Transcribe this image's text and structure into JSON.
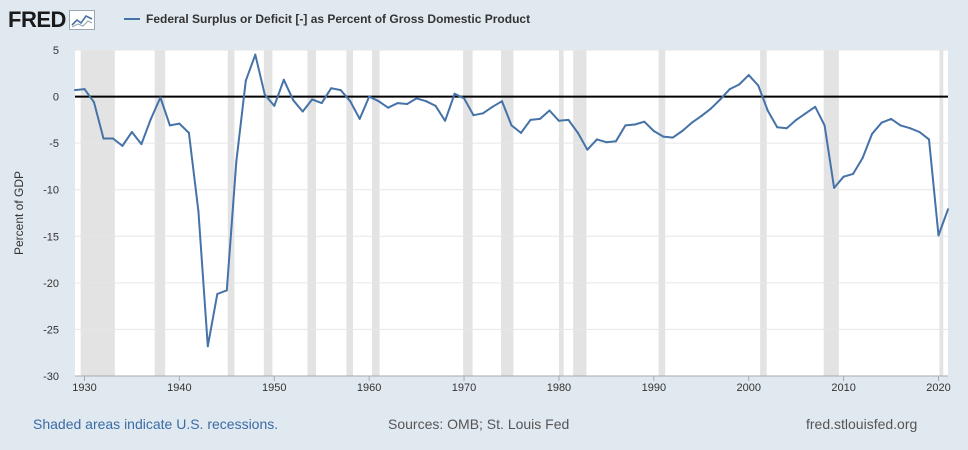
{
  "header": {
    "logo_text": "FRED",
    "legend_label": "Federal Surplus or Deficit [-] as Percent of Gross Domestic Product"
  },
  "footer": {
    "recession_note": "Shaded areas indicate U.S. recessions.",
    "sources": "Sources: OMB; St. Louis Fed",
    "site": "fred.stlouisfed.org"
  },
  "colors": {
    "series": "#4572a7",
    "background": "#e1e9f0",
    "recession": "#e3e3e3",
    "zero_line": "#000000"
  },
  "chart_data": {
    "type": "line",
    "title": "Federal Surplus or Deficit [-] as Percent of Gross Domestic Product",
    "ylabel": "Percent of GDP",
    "xlabel": "",
    "xlim": [
      1929,
      2021
    ],
    "ylim": [
      -30,
      5
    ],
    "yticks": [
      5,
      0,
      -5,
      -10,
      -15,
      -20,
      -25,
      -30
    ],
    "xticks": [
      1930,
      1940,
      1950,
      1960,
      1970,
      1980,
      1990,
      2000,
      2010,
      2020
    ],
    "grid": true,
    "legend": "top-left",
    "recessions": [
      [
        1929.6,
        1933.2
      ],
      [
        1937.4,
        1938.5
      ],
      [
        1945.1,
        1945.8
      ],
      [
        1948.9,
        1949.8
      ],
      [
        1953.5,
        1954.4
      ],
      [
        1957.6,
        1958.3
      ],
      [
        1960.3,
        1961.1
      ],
      [
        1969.9,
        1970.9
      ],
      [
        1973.9,
        1975.2
      ],
      [
        1980.0,
        1980.5
      ],
      [
        1981.5,
        1982.9
      ],
      [
        1990.5,
        1991.2
      ],
      [
        2001.2,
        2001.9
      ],
      [
        2007.9,
        2009.5
      ],
      [
        2020.1,
        2020.5
      ]
    ],
    "series": [
      {
        "x": [
          1929,
          1930,
          1931,
          1932,
          1933,
          1934,
          1935,
          1936,
          1937,
          1938,
          1939,
          1940,
          1941,
          1942,
          1943,
          1944,
          1945,
          1946,
          1947,
          1948,
          1949,
          1950,
          1951,
          1952,
          1953,
          1954,
          1955,
          1956,
          1957,
          1958,
          1959,
          1960,
          1961,
          1962,
          1963,
          1964,
          1965,
          1966,
          1967,
          1968,
          1969,
          1970,
          1971,
          1972,
          1973,
          1974,
          1975,
          1976,
          1977,
          1978,
          1979,
          1980,
          1981,
          1982,
          1983,
          1984,
          1985,
          1986,
          1987,
          1988,
          1989,
          1990,
          1991,
          1992,
          1993,
          1994,
          1995,
          1996,
          1997,
          1998,
          1999,
          2000,
          2001,
          2002,
          2003,
          2004,
          2005,
          2006,
          2007,
          2008,
          2009,
          2010,
          2011,
          2012,
          2013,
          2014,
          2015,
          2016,
          2017,
          2018,
          2019,
          2020,
          2021
        ],
        "values": [
          0.7,
          0.8,
          -0.6,
          -4.5,
          -4.5,
          -5.3,
          -3.8,
          -5.1,
          -2.4,
          -0.1,
          -3.1,
          -2.9,
          -3.9,
          -12.3,
          -26.8,
          -21.2,
          -20.8,
          -7.0,
          1.7,
          4.5,
          0.2,
          -1.0,
          1.8,
          -0.4,
          -1.6,
          -0.3,
          -0.7,
          0.9,
          0.7,
          -0.5,
          -2.4,
          0.0,
          -0.5,
          -1.2,
          -0.7,
          -0.8,
          -0.2,
          -0.5,
          -1.0,
          -2.6,
          0.3,
          -0.2,
          -2.0,
          -1.8,
          -1.1,
          -0.5,
          -3.1,
          -3.9,
          -2.5,
          -2.4,
          -1.5,
          -2.6,
          -2.5,
          -3.9,
          -5.7,
          -4.6,
          -4.9,
          -4.8,
          -3.1,
          -3.0,
          -2.7,
          -3.7,
          -4.3,
          -4.4,
          -3.7,
          -2.8,
          -2.1,
          -1.3,
          -0.3,
          0.8,
          1.3,
          2.3,
          1.2,
          -1.5,
          -3.3,
          -3.4,
          -2.5,
          -1.8,
          -1.1,
          -3.1,
          -9.8,
          -8.6,
          -8.3,
          -6.6,
          -4.0,
          -2.8,
          -2.4,
          -3.1,
          -3.4,
          -3.8,
          -4.6,
          -14.9,
          -12.1
        ]
      }
    ]
  }
}
